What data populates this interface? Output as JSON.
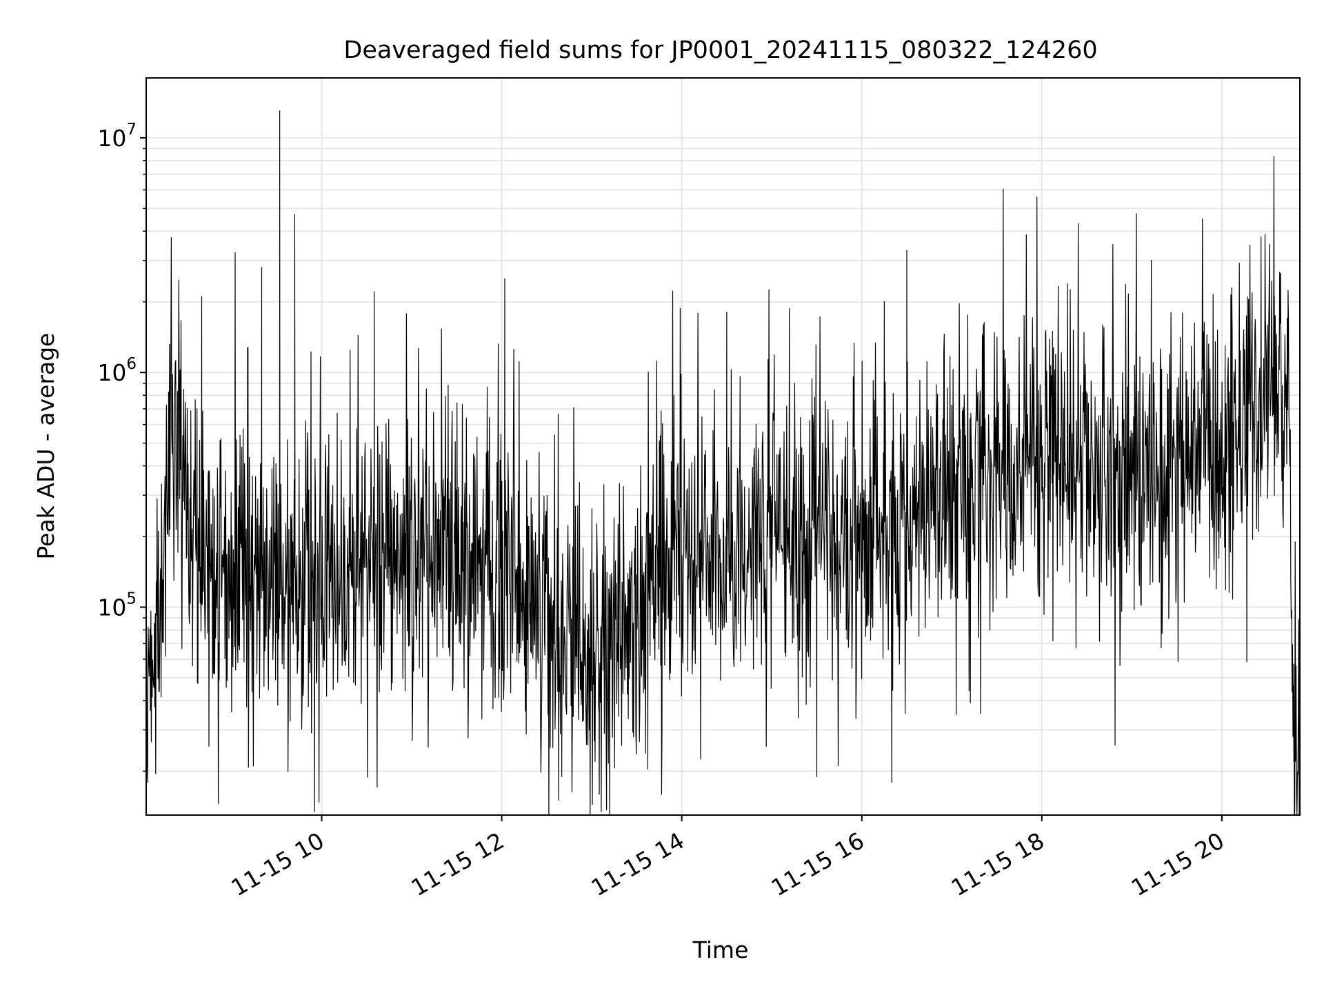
{
  "chart_data": {
    "type": "line",
    "title": "Deaveraged field sums for JP0001_20241115_080322_124260",
    "xlabel": "Time",
    "ylabel": "Peak ADU - average",
    "yscale": "log",
    "ylim": [
      13000,
      18000000
    ],
    "xlim": [
      "2024-11-15T08:03",
      "2024-11-15T20:52"
    ],
    "grid": true,
    "x_ticks": [
      {
        "t": "2024-11-15T10:00",
        "label": "11-15 10"
      },
      {
        "t": "2024-11-15T12:00",
        "label": "11-15 12"
      },
      {
        "t": "2024-11-15T14:00",
        "label": "11-15 14"
      },
      {
        "t": "2024-11-15T16:00",
        "label": "11-15 16"
      },
      {
        "t": "2024-11-15T18:00",
        "label": "11-15 18"
      },
      {
        "t": "2024-11-15T20:00",
        "label": "11-15 20"
      }
    ],
    "y_ticks": [
      {
        "value": 100000,
        "base": "10",
        "exp": "5"
      },
      {
        "value": 1000000,
        "base": "10",
        "exp": "6"
      },
      {
        "value": 10000000,
        "base": "10",
        "exp": "7"
      }
    ],
    "series": [
      {
        "color": "#000000",
        "typical_level": [
          {
            "t": "2024-11-15T08:05",
            "value": 40000
          },
          {
            "t": "2024-11-15T08:15",
            "value": 150000
          },
          {
            "t": "2024-11-15T08:20",
            "value": 800000
          },
          {
            "t": "2024-11-15T08:30",
            "value": 200000
          },
          {
            "t": "2024-11-15T09:00",
            "value": 130000
          },
          {
            "t": "2024-11-15T10:00",
            "value": 140000
          },
          {
            "t": "2024-11-15T11:00",
            "value": 180000
          },
          {
            "t": "2024-11-15T12:00",
            "value": 160000
          },
          {
            "t": "2024-11-15T12:45",
            "value": 60000
          },
          {
            "t": "2024-11-15T13:30",
            "value": 90000
          },
          {
            "t": "2024-11-15T14:00",
            "value": 200000
          },
          {
            "t": "2024-11-15T14:30",
            "value": 150000
          },
          {
            "t": "2024-11-15T15:00",
            "value": 200000
          },
          {
            "t": "2024-11-15T16:00",
            "value": 200000
          },
          {
            "t": "2024-11-15T17:00",
            "value": 350000
          },
          {
            "t": "2024-11-15T18:00",
            "value": 400000
          },
          {
            "t": "2024-11-15T19:00",
            "value": 400000
          },
          {
            "t": "2024-11-15T20:00",
            "value": 420000
          },
          {
            "t": "2024-11-15T20:35",
            "value": 1000000
          },
          {
            "t": "2024-11-15T20:45",
            "value": 500000
          },
          {
            "t": "2024-11-15T20:48",
            "value": 22000
          },
          {
            "t": "2024-11-15T20:52",
            "value": 45000
          }
        ],
        "notable_peaks": [
          {
            "t": "2024-11-15T09:32",
            "value": 13000000
          },
          {
            "t": "2024-11-15T09:42",
            "value": 4700000
          },
          {
            "t": "2024-11-15T09:20",
            "value": 2800000
          },
          {
            "t": "2024-11-15T16:30",
            "value": 3300000
          },
          {
            "t": "2024-11-15T19:13",
            "value": 3000000
          },
          {
            "t": "2024-11-15T12:02",
            "value": 2500000
          },
          {
            "t": "2024-11-15T08:40",
            "value": 2100000
          },
          {
            "t": "2024-11-15T10:35",
            "value": 2200000
          },
          {
            "t": "2024-11-15T20:35",
            "value": 2100000
          },
          {
            "t": "2024-11-15T14:30",
            "value": 1800000
          },
          {
            "t": "2024-11-15T16:15",
            "value": 2000000
          }
        ],
        "notable_minima": [
          {
            "t": "2024-11-15T08:04",
            "value": 18000
          },
          {
            "t": "2024-11-15T13:05",
            "value": 16000
          },
          {
            "t": "2024-11-15T12:40",
            "value": 19000
          },
          {
            "t": "2024-11-15T16:20",
            "value": 18000
          },
          {
            "t": "2024-11-15T15:30",
            "value": 19000
          },
          {
            "t": "2024-11-15T20:48",
            "value": 22000
          }
        ]
      }
    ]
  }
}
